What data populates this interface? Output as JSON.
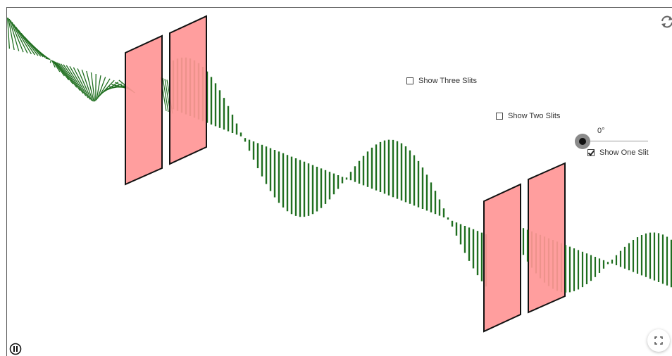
{
  "controls": {
    "show_three_slits": {
      "label": "Show Three Slits",
      "checked": false
    },
    "show_two_slits": {
      "label": "Show Two Slits",
      "checked": false
    },
    "show_one_slit": {
      "label": "Show One Slit",
      "checked": true
    },
    "angle_slider": {
      "value_label": "0°",
      "value": 0
    }
  },
  "icons": {
    "reset": "refresh-icon",
    "fullscreen": "fullscreen-icon",
    "pause": "pause-icon"
  },
  "colors": {
    "wave": "#1f6e1f",
    "slit_fill": "#ff9696",
    "slit_border": "#111111"
  }
}
